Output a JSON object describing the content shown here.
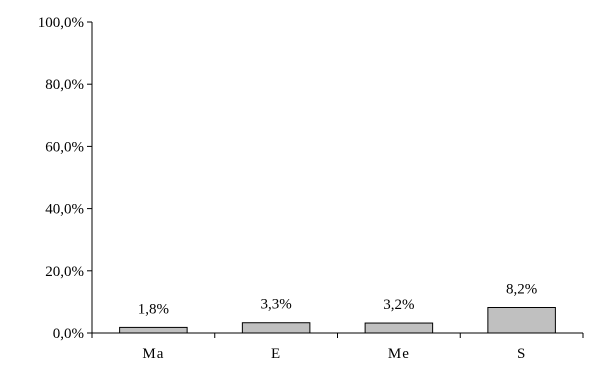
{
  "chart_data": {
    "type": "bar",
    "categories": [
      "Ma",
      "E",
      "Me",
      "S"
    ],
    "values": [
      1.8,
      3.3,
      3.2,
      8.2
    ],
    "data_labels": [
      "1,8%",
      "3,3%",
      "3,2%",
      "8,2%"
    ],
    "ylim": [
      0,
      100
    ],
    "yticks": [
      0,
      20,
      40,
      60,
      80,
      100
    ],
    "ytick_labels": [
      "0,0%",
      "20,0%",
      "40,0%",
      "60,0%",
      "80,0%",
      "100,0%"
    ],
    "grid": false,
    "legend": "none",
    "bar_color": "#c0c0c0",
    "edge_color": "#000000"
  }
}
